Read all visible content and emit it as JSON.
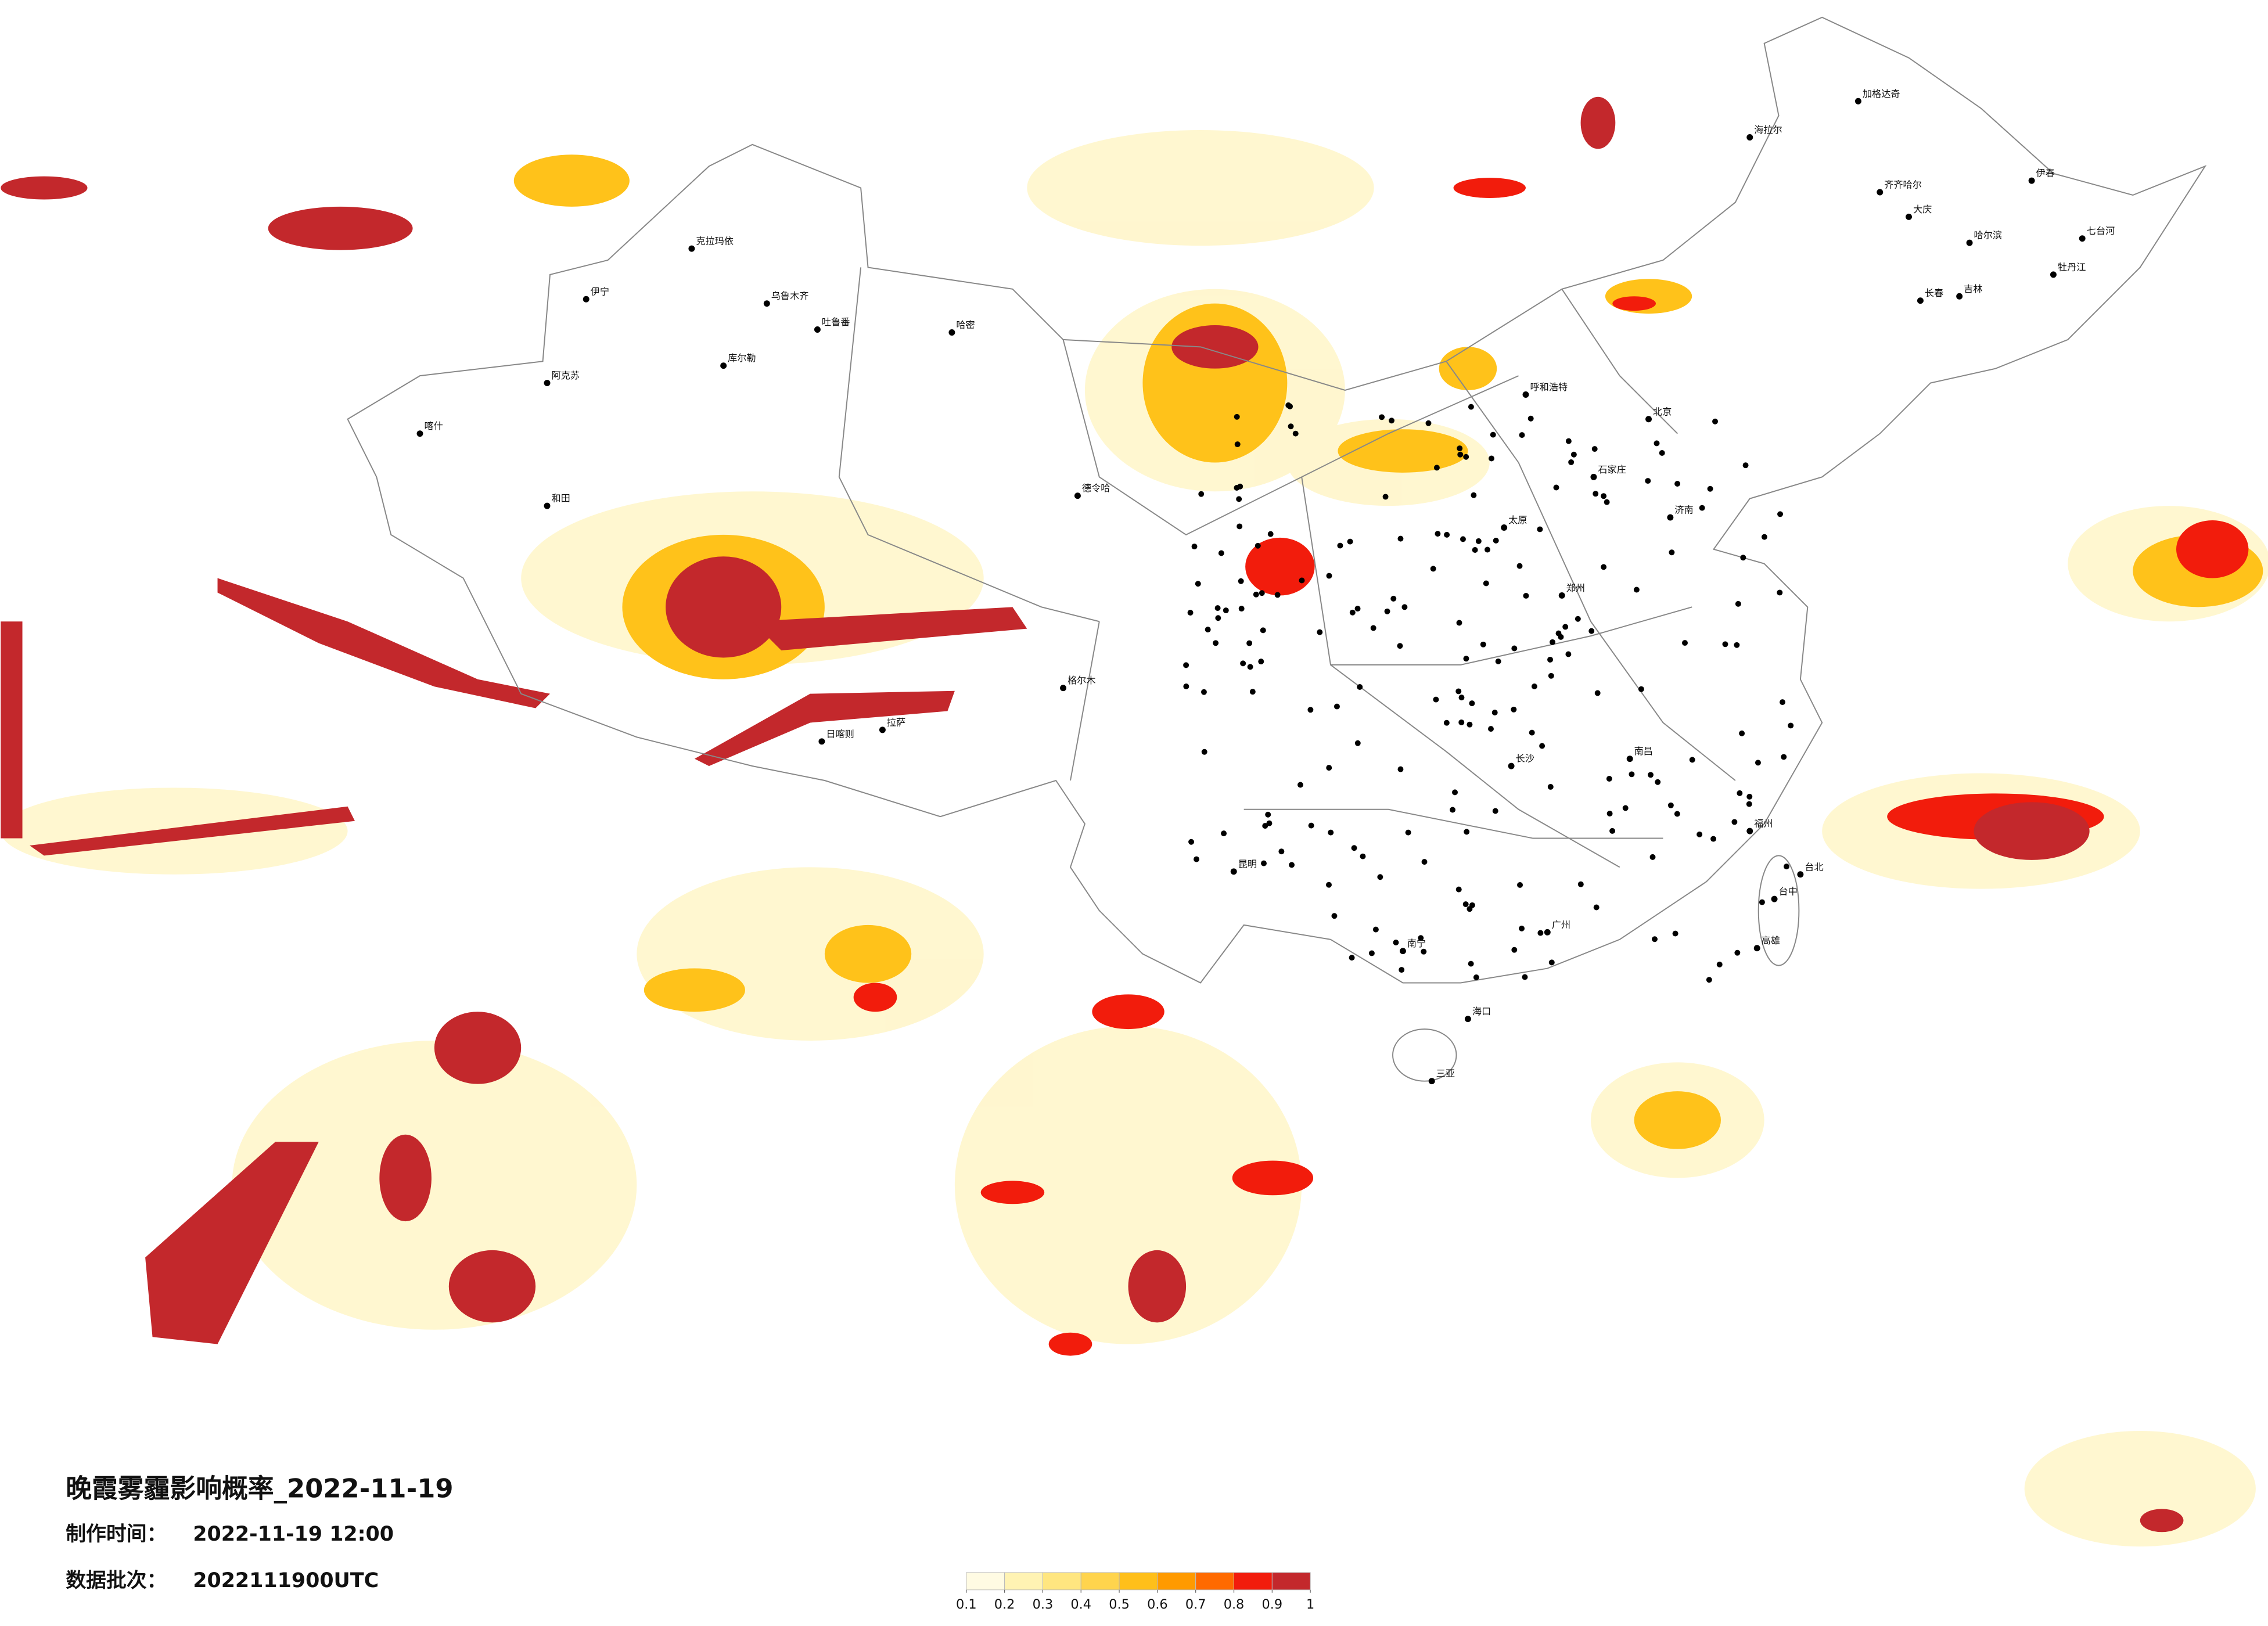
{
  "title": "晚霞雾霾影响概率_2022-11-19",
  "production_time": {
    "label": "制作时间：",
    "value": "2022-11-19 12:00"
  },
  "data_batch": {
    "label": "数据批次：",
    "value": "2022111900UTC"
  },
  "legend": {
    "colors": [
      "#fffbe3",
      "#fff3b3",
      "#ffe680",
      "#ffd44d",
      "#ffbf1a",
      "#ff9a00",
      "#ff6a00",
      "#f21c0c",
      "#c3282c"
    ],
    "ticks": [
      0.1,
      0.2,
      0.3,
      0.4,
      0.5,
      0.6,
      0.7,
      0.8,
      0.9,
      1
    ]
  },
  "cities": [
    "克拉玛依",
    "乌鲁木齐",
    "吐鲁番",
    "哈密",
    "伊宁",
    "阿克苏",
    "库尔勒",
    "和田",
    "喀什",
    "格尔木",
    "拉萨",
    "日喀则",
    "德令哈",
    "北京",
    "石家庄",
    "太原",
    "呼和浩特",
    "济南",
    "郑州",
    "昆明",
    "南宁",
    "广州",
    "长沙",
    "南昌",
    "福州",
    "台北",
    "台中",
    "高雄",
    "海口",
    "三亚",
    "哈尔滨",
    "长春",
    "吉林",
    "齐齐哈尔",
    "海拉尔",
    "加格达奇",
    "伊春",
    "七台河",
    "牡丹江",
    "大庆"
  ]
}
